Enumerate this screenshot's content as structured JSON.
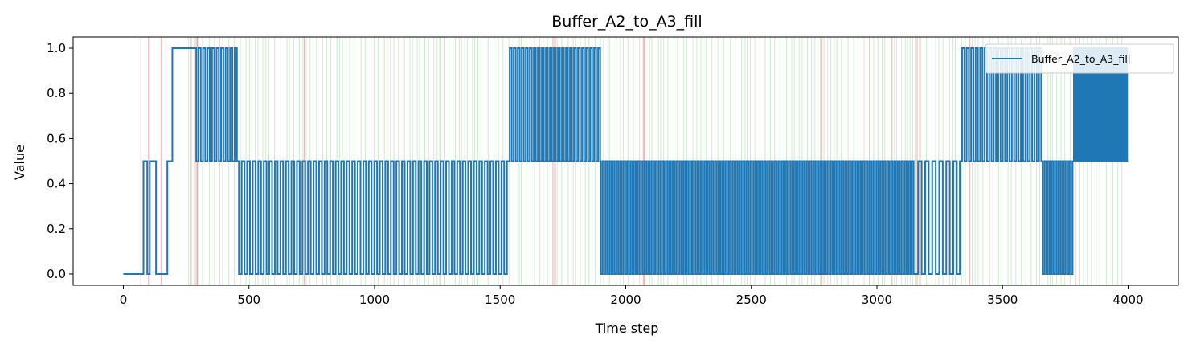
{
  "chart_data": {
    "type": "line",
    "title": "Buffer_A2_to_A3_fill",
    "xlabel": "Time step",
    "ylabel": "Value",
    "xlim": [
      -200,
      4200
    ],
    "ylim": [
      -0.05,
      1.05
    ],
    "xticks": [
      0,
      500,
      1000,
      1500,
      2000,
      2500,
      3000,
      3500,
      4000
    ],
    "yticks": [
      0.0,
      0.2,
      0.4,
      0.6,
      0.8,
      1.0
    ],
    "ytick_labels": [
      "0.0",
      "0.2",
      "0.4",
      "0.6",
      "0.8",
      "1.0"
    ],
    "legend": {
      "position": "upper-right",
      "entries": [
        "Buffer_A2_to_A3_fill"
      ]
    },
    "line_color": "#1f77b4",
    "event_line_colors": {
      "green": "#2ca02c",
      "red": "#d62728"
    },
    "red_event_lines": [
      70,
      100,
      150,
      270,
      290,
      295,
      720,
      1050,
      1260,
      1710,
      1720,
      2070,
      2075,
      2780,
      2970,
      3060,
      3160,
      3170,
      3370,
      3790
    ],
    "series": [
      {
        "name": "Buffer_A2_to_A3_fill",
        "segments": [
          {
            "start": 0,
            "end": 70,
            "mode": "constant",
            "value": 0.0
          },
          {
            "start": 70,
            "end": 80,
            "mode": "constant",
            "value": 0.0
          },
          {
            "start": 80,
            "end": 95,
            "mode": "constant",
            "value": 0.5
          },
          {
            "start": 95,
            "end": 105,
            "mode": "constant",
            "value": 0.0
          },
          {
            "start": 105,
            "end": 130,
            "mode": "constant",
            "value": 0.5
          },
          {
            "start": 130,
            "end": 175,
            "mode": "constant",
            "value": 0.0
          },
          {
            "start": 175,
            "end": 195,
            "mode": "constant",
            "value": 0.5
          },
          {
            "start": 195,
            "end": 290,
            "mode": "constant",
            "value": 1.0
          },
          {
            "start": 290,
            "end": 460,
            "mode": "toggle",
            "levels": [
              0.5,
              1.0
            ],
            "step": 9
          },
          {
            "start": 460,
            "end": 1530,
            "mode": "toggle",
            "levels": [
              0.0,
              0.5
            ],
            "step": 11
          },
          {
            "start": 1530,
            "end": 1900,
            "mode": "toggle",
            "levels": [
              0.5,
              1.0
            ],
            "step": 8
          },
          {
            "start": 1900,
            "end": 3150,
            "mode": "toggle",
            "levels": [
              0.0,
              0.5
            ],
            "step": 7
          },
          {
            "start": 3150,
            "end": 3330,
            "mode": "toggle",
            "levels": [
              0.0,
              0.5
            ],
            "step": 14
          },
          {
            "start": 3330,
            "end": 3660,
            "mode": "toggle",
            "levels": [
              0.5,
              1.0
            ],
            "step": 9
          },
          {
            "start": 3660,
            "end": 3780,
            "mode": "toggle",
            "levels": [
              0.0,
              0.5
            ],
            "step": 7
          },
          {
            "start": 3780,
            "end": 4000,
            "mode": "toggle",
            "levels": [
              0.5,
              1.0
            ],
            "step": 4
          }
        ]
      }
    ]
  }
}
